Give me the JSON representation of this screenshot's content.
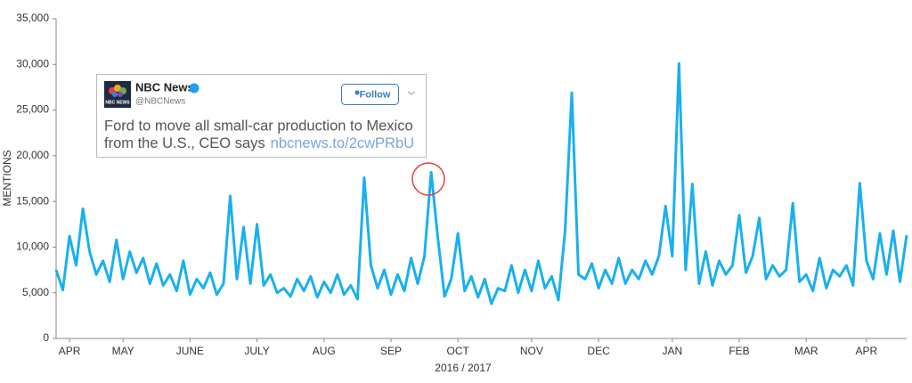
{
  "chart_data": {
    "type": "line",
    "categories": [
      null,
      null,
      "APR",
      null,
      null,
      null,
      null,
      null,
      null,
      null,
      "MAY",
      null,
      null,
      null,
      null,
      null,
      null,
      null,
      null,
      null,
      "JUNE",
      null,
      null,
      null,
      null,
      null,
      null,
      null,
      null,
      null,
      "JULY",
      null,
      null,
      null,
      null,
      null,
      null,
      null,
      null,
      null,
      "AUG",
      null,
      null,
      null,
      null,
      null,
      null,
      null,
      null,
      null,
      "SEP",
      null,
      null,
      null,
      null,
      null,
      null,
      null,
      null,
      null,
      "OCT",
      null,
      null,
      null,
      null,
      null,
      null,
      null,
      null,
      null,
      null,
      "NOV",
      null,
      null,
      null,
      null,
      null,
      null,
      null,
      null,
      null,
      "DEC",
      null,
      null,
      null,
      null,
      null,
      null,
      null,
      null,
      null,
      null,
      "JAN",
      null,
      null,
      null,
      null,
      null,
      null,
      null,
      null,
      null,
      "FEB",
      null,
      null,
      null,
      null,
      null,
      null,
      null,
      null,
      null,
      "MAR",
      null,
      null,
      null,
      null,
      null,
      null,
      null,
      null,
      "APR",
      null,
      null,
      null,
      null,
      null,
      null
    ],
    "values": [
      7500,
      5300,
      11200,
      8000,
      14200,
      9500,
      7000,
      8500,
      6200,
      10800,
      6500,
      9500,
      7200,
      8800,
      6000,
      8200,
      5800,
      7000,
      5200,
      8500,
      4800,
      6500,
      5500,
      7200,
      4800,
      6000,
      15600,
      6500,
      12200,
      6000,
      12500,
      5800,
      7000,
      5000,
      5500,
      4600,
      6500,
      5200,
      6800,
      4500,
      6200,
      5000,
      7000,
      4800,
      5800,
      4300,
      17600,
      8000,
      5500,
      7500,
      4800,
      7000,
      5200,
      8800,
      6000,
      9000,
      18200,
      11000,
      4600,
      6500,
      11500,
      5200,
      6800,
      4500,
      6500,
      3800,
      5500,
      5200,
      8000,
      5000,
      7500,
      5200,
      8500,
      5500,
      6800,
      4200,
      11800,
      26900,
      7000,
      6500,
      8200,
      5500,
      7500,
      6000,
      8800,
      6000,
      7500,
      6500,
      8500,
      7000,
      9000,
      14500,
      9000,
      30100,
      7500,
      16900,
      6000,
      9500,
      5800,
      8500,
      7000,
      8000,
      13500,
      7200,
      9000,
      13200,
      6500,
      8000,
      6800,
      7500,
      14800,
      6200,
      7000,
      5200,
      8800,
      5500,
      7500,
      6800,
      8000,
      5800,
      17000,
      8500,
      6500,
      11500,
      7000,
      11800,
      6200,
      11300
    ],
    "color": "#1ab0ee",
    "ylim": [
      0,
      35000
    ],
    "yticks": [
      0,
      {
        "value": 5000,
        "label": "5,000"
      },
      {
        "value": 10000,
        "label": "10,000"
      },
      {
        "value": 15000,
        "label": "15,000"
      },
      {
        "value": 20000,
        "label": "20,000"
      },
      {
        "value": 25000,
        "label": "25,000"
      },
      {
        "value": 30000,
        "label": "30,000"
      },
      {
        "value": 35000,
        "label": "35,000"
      }
    ],
    "xlabel": "2016 / 2017",
    "ylabel": "MENTIONS",
    "grid": false
  },
  "tweet": {
    "logo_text": "NBC NEWS",
    "name": "NBC News",
    "handle": "@NBCNews",
    "button": "Follow",
    "text_lines": [
      "Ford to move all small-car production to Mexico",
      "from the U.S., CEO says"
    ],
    "link": "nbcnews.to/2cwPRbU"
  }
}
